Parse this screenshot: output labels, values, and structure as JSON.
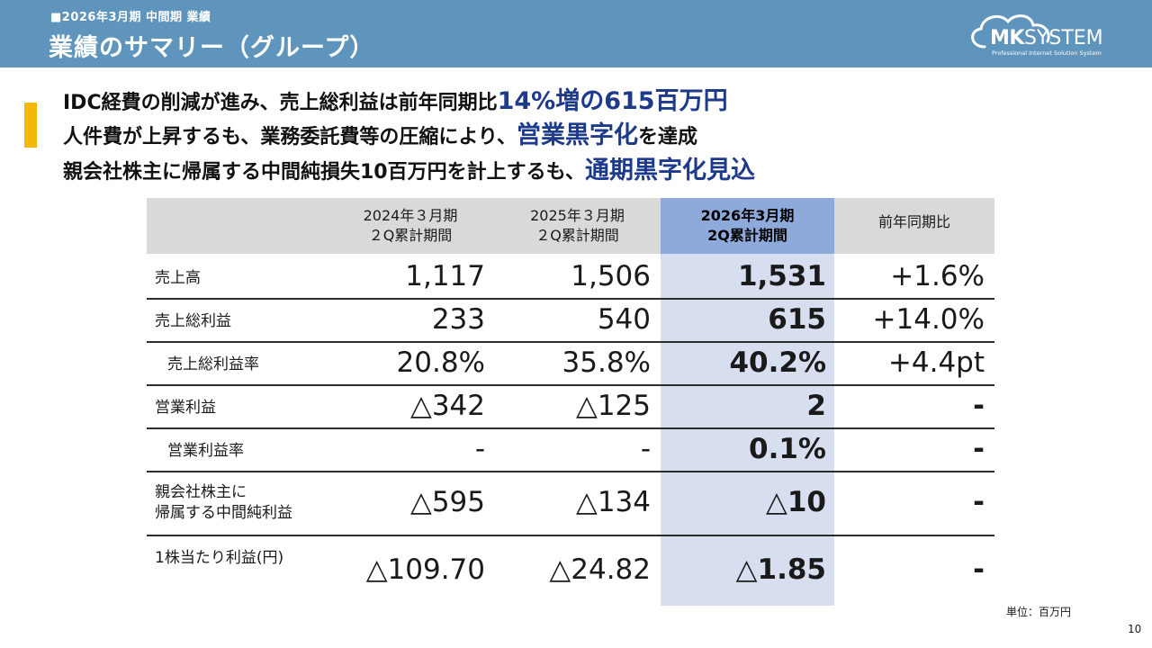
{
  "header": {
    "subtitle": "■2026年3月期 中間期 業績",
    "title": "業績のサマリー（グループ）",
    "logo": {
      "main_bold": "MK",
      "main_thin": "SYSTEM",
      "tagline": "Professional Internet Solution System",
      "icon": "cloud-icon"
    }
  },
  "messages": [
    {
      "pre": "IDC経費の削減が進み、売上総利益は前年同期比",
      "hl": "14%増の615百万円",
      "post": ""
    },
    {
      "pre": "人件費が上昇するも、業務委託費等の圧縮により、",
      "hl": "営業黒字化",
      "post": "を達成"
    },
    {
      "pre": "親会社株主に帰属する中間純損失10百万円を計上するも、",
      "hl": "通期黒字化見込",
      "post": ""
    }
  ],
  "table": {
    "headers": [
      {
        "line1": "2024年３月期",
        "line2": "２Q累計期間"
      },
      {
        "line1": "2025年３月期",
        "line2": "２Q累計期間"
      },
      {
        "line1": "2026年3月期",
        "line2": "2Q累計期間"
      },
      {
        "line1": "前年同期比",
        "line2": ""
      }
    ],
    "rows": [
      {
        "label1": "売上高",
        "label2": "",
        "values": [
          "1,117",
          "1,506",
          "1,531",
          "+1.6%"
        ]
      },
      {
        "label1": "売上総利益",
        "label2": "",
        "values": [
          "233",
          "540",
          "615",
          "+14.0%"
        ]
      },
      {
        "label1": "売上総利益率",
        "label2": "",
        "values": [
          "20.8%",
          "35.8%",
          "40.2%",
          "+4.4pt"
        ]
      },
      {
        "label1": "営業利益",
        "label2": "",
        "values": [
          "△342",
          "△125",
          "2",
          "-"
        ]
      },
      {
        "label1": "営業利益率",
        "label2": "",
        "values": [
          "-",
          "-",
          "0.1%",
          "-"
        ]
      },
      {
        "label1": "親会社株主に",
        "label2": "帰属する中間純利益",
        "values": [
          "△595",
          "△134",
          "△10",
          "-"
        ]
      },
      {
        "label1": "1株当たり利益(円)",
        "label2": "",
        "values": [
          "△109.70",
          "△24.82",
          "△1.85",
          "-"
        ]
      }
    ]
  },
  "footer": {
    "unit": "単位：百万円",
    "page": "10"
  },
  "colors": {
    "header_bg": "#5f95bd",
    "accent": "#f6b70b",
    "highlight_text": "#1e3a8a",
    "highlight_col": "#d6deef",
    "highlight_head": "#8eaadb",
    "table_head": "#d9d9d9"
  }
}
